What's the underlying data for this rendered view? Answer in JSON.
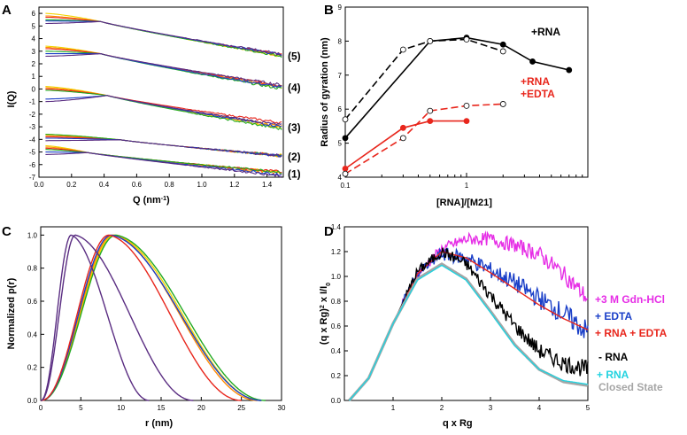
{
  "figure": {
    "panels": [
      "A",
      "B",
      "C",
      "D"
    ]
  },
  "chart_data": [
    {
      "panel": "A",
      "type": "line",
      "xlabel": "Q (nm",
      "xlabel_sup": "-1",
      "xlabel_close": ")",
      "ylabel": "I(Q)",
      "xlim": [
        0.0,
        1.5
      ],
      "ylim": [
        -7,
        6.5
      ],
      "xticks": [
        "0.0",
        "0.2",
        "0.4",
        "0.6",
        "0.8",
        "1.0",
        "1.2",
        "1.4"
      ],
      "yticks": [
        "6",
        "5",
        "4",
        "3",
        "2",
        "1",
        "0",
        "-1",
        "-2",
        "-3",
        "-4",
        "-5",
        "-6",
        "-7"
      ],
      "colors": [
        "#f2d400",
        "#ff8c00",
        "#e8261c",
        "#22aa22",
        "#1a3fc8",
        "#5a2d82"
      ],
      "groups": [
        {
          "label": "(5)",
          "start": [
            6.0,
            5.8,
            5.7,
            5.5,
            5.4,
            5.2
          ],
          "x_knee": 0.38,
          "end": [
            2.6,
            2.65,
            2.7,
            2.6,
            2.7,
            2.75
          ]
        },
        {
          "label": "(4)",
          "start": [
            3.4,
            3.3,
            3.2,
            3.0,
            2.8,
            2.6
          ],
          "x_knee": 0.38,
          "end": [
            0.1,
            0.2,
            0.25,
            0.0,
            0.1,
            0.3
          ]
        },
        {
          "label": "(3)",
          "start": [
            0.2,
            0.1,
            0.0,
            -0.1,
            -0.8,
            -1.0
          ],
          "x_knee": 0.42,
          "end": [
            -3.1,
            -3.0,
            -2.7,
            -3.2,
            -3.0,
            -2.9
          ]
        },
        {
          "label": "(2)",
          "start": [
            -3.6,
            -3.7,
            -3.8,
            -3.6,
            -3.9,
            -4.1
          ],
          "x_knee": 0.5,
          "end": [
            -5.3,
            -5.3,
            -5.3,
            -5.3,
            -5.3,
            -5.3
          ]
        },
        {
          "label": "(1)",
          "start": [
            -4.5,
            -4.6,
            -4.7,
            -4.8,
            -5.0,
            -5.2
          ],
          "x_knee": 0.3,
          "end": [
            -6.6,
            -6.7,
            -6.6,
            -6.6,
            -6.8,
            -6.9
          ]
        }
      ]
    },
    {
      "panel": "B",
      "type": "line",
      "xlabel": "[RNA]/[M21]",
      "ylabel": "Radius of gyration (nm)",
      "xscale": "log",
      "xlim": [
        0.1,
        10
      ],
      "ylim": [
        4,
        9
      ],
      "xticks": [
        "0.1",
        "1"
      ],
      "yticks": [
        "4",
        "5",
        "6",
        "7",
        "8",
        "9"
      ],
      "annotations": [
        {
          "text": "+RNA",
          "color": "#000000"
        },
        {
          "text": "+RNA",
          "color": "#e8261c"
        },
        {
          "text": "+EDTA",
          "color": "#e8261c"
        }
      ],
      "series": [
        {
          "name": "+RNA solid",
          "color": "#000000",
          "dash": false,
          "filled": true,
          "x": [
            0.1,
            0.5,
            1.0,
            2.0,
            3.5,
            7.0
          ],
          "y": [
            5.15,
            8.0,
            8.1,
            7.9,
            7.4,
            7.15
          ]
        },
        {
          "name": "+RNA dashed",
          "color": "#000000",
          "dash": true,
          "filled": false,
          "x": [
            0.1,
            0.3,
            0.5,
            1.0,
            2.0
          ],
          "y": [
            5.7,
            7.75,
            8.0,
            8.05,
            7.7
          ]
        },
        {
          "name": "+RNA +EDTA solid",
          "color": "#e8261c",
          "dash": false,
          "filled": true,
          "x": [
            0.1,
            0.3,
            0.5,
            1.0
          ],
          "y": [
            4.25,
            5.45,
            5.65,
            5.65
          ]
        },
        {
          "name": "+RNA +EDTA dashed",
          "color": "#e8261c",
          "dash": true,
          "filled": false,
          "x": [
            0.1,
            0.3,
            0.5,
            1.0,
            2.0
          ],
          "y": [
            4.1,
            5.15,
            5.95,
            6.1,
            6.15
          ]
        }
      ]
    },
    {
      "panel": "C",
      "type": "line",
      "xlabel": "r (nm)",
      "ylabel": "Normalized p(r)",
      "xlim": [
        0,
        30
      ],
      "ylim": [
        0,
        1.05
      ],
      "xticks": [
        "0",
        "5",
        "10",
        "15",
        "20",
        "25",
        "30"
      ],
      "yticks": [
        "0.0",
        "0.2",
        "0.4",
        "0.6",
        "0.8",
        "1.0"
      ],
      "series": [
        {
          "name": "yellow",
          "color": "#f2d400",
          "peak": 9.2,
          "dmax": 27.5,
          "wl": 4.6,
          "wr": 7.8
        },
        {
          "name": "orange",
          "color": "#ff8c00",
          "peak": 9.0,
          "dmax": 27.0,
          "wl": 4.5,
          "wr": 7.6
        },
        {
          "name": "green",
          "color": "#22aa22",
          "peak": 9.4,
          "dmax": 28.0,
          "wl": 4.6,
          "wr": 8.0
        },
        {
          "name": "blue",
          "color": "#1a3fc8",
          "peak": 8.8,
          "dmax": 27.5,
          "wl": 4.4,
          "wr": 7.8
        },
        {
          "name": "red",
          "color": "#e8261c",
          "peak": 8.5,
          "dmax": 25.0,
          "wl": 4.3,
          "wr": 6.8
        },
        {
          "name": "purple narrow",
          "color": "#5a2d82",
          "peak": 3.8,
          "dmax": 13.5,
          "wl": 1.9,
          "wr": 3.3
        },
        {
          "name": "purple wide",
          "color": "#5a2d82",
          "peak": 4.3,
          "dmax": 19.0,
          "wl": 1.8,
          "wr": 5.8
        }
      ]
    },
    {
      "panel": "D",
      "type": "line",
      "xlabel": "q x Rg",
      "ylabel": "(q x Rg)",
      "ylabel_sup": "2",
      "ylabel_mid": " x I/I",
      "ylabel_sub": "0",
      "xlim": [
        0,
        5
      ],
      "ylim": [
        0,
        1.4
      ],
      "xticks": [
        "1",
        "2",
        "3",
        "4",
        "5"
      ],
      "yticks": [
        "0.0",
        "0.2",
        "0.4",
        "0.6",
        "0.8",
        "1.0",
        "1.2",
        "1.4"
      ],
      "legend": [
        {
          "text": "+3 M Gdn-HCl",
          "color": "#e62ee6"
        },
        {
          "text": "+ EDTA",
          "color": "#1a3fc8"
        },
        {
          "text": "+ RNA + EDTA",
          "color": "#e8261c"
        },
        {
          "text": "- RNA",
          "color": "#000000"
        },
        {
          "text": "+ RNA",
          "color": "#22d3e0"
        },
        {
          "text": "Closed State",
          "color": "#a6a6a6"
        }
      ],
      "series": [
        {
          "name": "+3 M Gdn-HCl",
          "color": "#e62ee6",
          "x": [
            0.1,
            0.5,
            1.0,
            1.5,
            2.0,
            2.5,
            3.0,
            3.5,
            4.0,
            4.5,
            5.0
          ],
          "y": [
            0.0,
            0.18,
            0.62,
            1.02,
            1.22,
            1.3,
            1.3,
            1.25,
            1.18,
            1.02,
            0.82
          ],
          "noise": 0.04
        },
        {
          "name": "+ EDTA",
          "color": "#1a3fc8",
          "x": [
            0.1,
            0.5,
            1.0,
            1.5,
            2.0,
            2.5,
            3.0,
            3.5,
            4.0,
            4.5,
            5.0
          ],
          "y": [
            0.0,
            0.18,
            0.62,
            1.02,
            1.18,
            1.15,
            1.05,
            0.95,
            0.82,
            0.7,
            0.55
          ],
          "noise": 0.05
        },
        {
          "name": "+ RNA + EDTA",
          "color": "#e8261c",
          "x": [
            0.1,
            0.5,
            1.0,
            1.5,
            2.0,
            2.5,
            3.0,
            3.5,
            4.0,
            4.5,
            5.0
          ],
          "y": [
            0.0,
            0.18,
            0.62,
            1.02,
            1.2,
            1.15,
            1.03,
            0.9,
            0.77,
            0.66,
            0.57
          ],
          "noise": 0.0
        },
        {
          "name": "- RNA",
          "color": "#000000",
          "x": [
            0.1,
            0.5,
            1.0,
            1.5,
            2.0,
            2.5,
            3.0,
            3.5,
            4.0,
            4.5,
            5.0
          ],
          "y": [
            0.0,
            0.18,
            0.62,
            1.04,
            1.2,
            1.1,
            0.85,
            0.6,
            0.4,
            0.3,
            0.25
          ],
          "noise": 0.04
        },
        {
          "name": "Closed State",
          "color": "#a6a6a6",
          "x": [
            0.1,
            0.5,
            1.0,
            1.5,
            2.0,
            2.5,
            3.0,
            3.5,
            4.0,
            4.5,
            5.0
          ],
          "y": [
            0.0,
            0.18,
            0.62,
            0.98,
            1.1,
            0.98,
            0.72,
            0.45,
            0.25,
            0.15,
            0.12
          ],
          "noise": 0.0
        },
        {
          "name": "+ RNA",
          "color": "#22d3e0",
          "x": [
            0.1,
            0.5,
            1.0,
            1.5,
            2.0,
            2.5,
            3.0,
            3.5,
            4.0,
            4.5,
            5.0
          ],
          "y": [
            0.0,
            0.18,
            0.62,
            0.97,
            1.09,
            0.97,
            0.71,
            0.44,
            0.25,
            0.16,
            0.13
          ],
          "noise": 0.0
        }
      ]
    }
  ]
}
